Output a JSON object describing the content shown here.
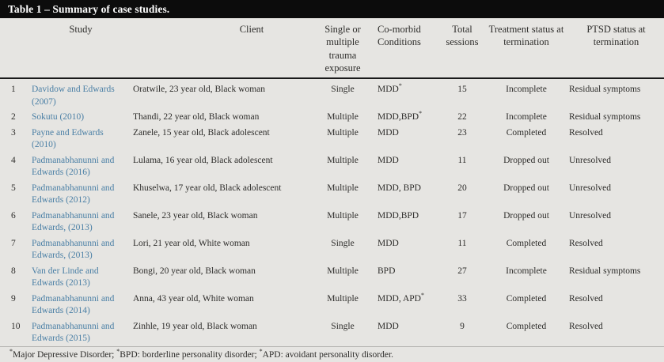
{
  "colors": {
    "title_bar": "#0c0c0c",
    "body_bg": "#e6e5e2",
    "citation_link": "#4a7fa5",
    "text": "#2e2d2b"
  },
  "table": {
    "title": "Table 1 – Summary of case studies.",
    "columns": [
      "Study",
      "Client",
      "Single or multiple trauma exposure",
      "Co-morbid Conditions",
      "Total sessions",
      "Treatment status at termination",
      "PTSD status at termination"
    ],
    "rows": [
      {
        "num": "1",
        "study": "Davidow and Edwards (2007)",
        "client": "Oratwile, 23 year old, Black woman",
        "trauma_exposure": "Single",
        "comorbid_conditions": "MDD*",
        "total_sessions": "15",
        "treatment_status": "Incomplete",
        "ptsd_status": "Residual symptoms"
      },
      {
        "num": "2",
        "study": "Sokutu (2010)",
        "client": "Thandi, 22 year old, Black woman",
        "trauma_exposure": "Multiple",
        "comorbid_conditions": "MDD,BPD*",
        "total_sessions": "22",
        "treatment_status": "Incomplete",
        "ptsd_status": "Residual symptoms"
      },
      {
        "num": "3",
        "study": "Payne and Edwards (2010)",
        "client": "Zanele, 15 year old, Black adolescent",
        "trauma_exposure": "Multiple",
        "comorbid_conditions": "MDD",
        "total_sessions": "23",
        "treatment_status": "Completed",
        "ptsd_status": "Resolved"
      },
      {
        "num": "4",
        "study": "Padmanabhanunni and Edwards (2016)",
        "client": "Lulama, 16 year old, Black adolescent",
        "trauma_exposure": "Multiple",
        "comorbid_conditions": "MDD",
        "total_sessions": "11",
        "treatment_status": "Dropped out",
        "ptsd_status": "Unresolved"
      },
      {
        "num": "5",
        "study": "Padmanabhanunni and Edwards (2012)",
        "client": "Khuselwa, 17 year old, Black adolescent",
        "trauma_exposure": "Multiple",
        "comorbid_conditions": "MDD, BPD",
        "total_sessions": "20",
        "treatment_status": "Dropped out",
        "ptsd_status": "Unresolved"
      },
      {
        "num": "6",
        "study": "Padmanabhanunni and Edwards, (2013)",
        "client": "Sanele, 23 year old, Black woman",
        "trauma_exposure": "Multiple",
        "comorbid_conditions": "MDD,BPD",
        "total_sessions": "17",
        "treatment_status": "Dropped out",
        "ptsd_status": "Unresolved"
      },
      {
        "num": "7",
        "study": "Padmanabhanunni and Edwards, (2013)",
        "client": "Lori, 21 year old, White woman",
        "trauma_exposure": "Single",
        "comorbid_conditions": "MDD",
        "total_sessions": "11",
        "treatment_status": "Completed",
        "ptsd_status": "Resolved"
      },
      {
        "num": "8",
        "study": "Van der Linde and Edwards (2013)",
        "client": "Bongi, 20 year old, Black woman",
        "trauma_exposure": "Multiple",
        "comorbid_conditions": "BPD",
        "total_sessions": "27",
        "treatment_status": "Incomplete",
        "ptsd_status": "Residual symptoms"
      },
      {
        "num": "9",
        "study": "Padmanabhanunni and Edwards (2014)",
        "client": "Anna, 43 year old, White woman",
        "trauma_exposure": "Multiple",
        "comorbid_conditions": "MDD, APD*",
        "total_sessions": "33",
        "treatment_status": "Completed",
        "ptsd_status": "Resolved"
      },
      {
        "num": "10",
        "study": "Padmanabhanunni and Edwards (2015)",
        "client": "Zinhle, 19 year old, Black woman",
        "trauma_exposure": "Single",
        "comorbid_conditions": "MDD",
        "total_sessions": "9",
        "treatment_status": "Completed",
        "ptsd_status": "Resolved"
      }
    ],
    "footnote": "*Major Depressive Disorder; *BPD: borderline personality disorder; *APD: avoidant personality disorder."
  }
}
